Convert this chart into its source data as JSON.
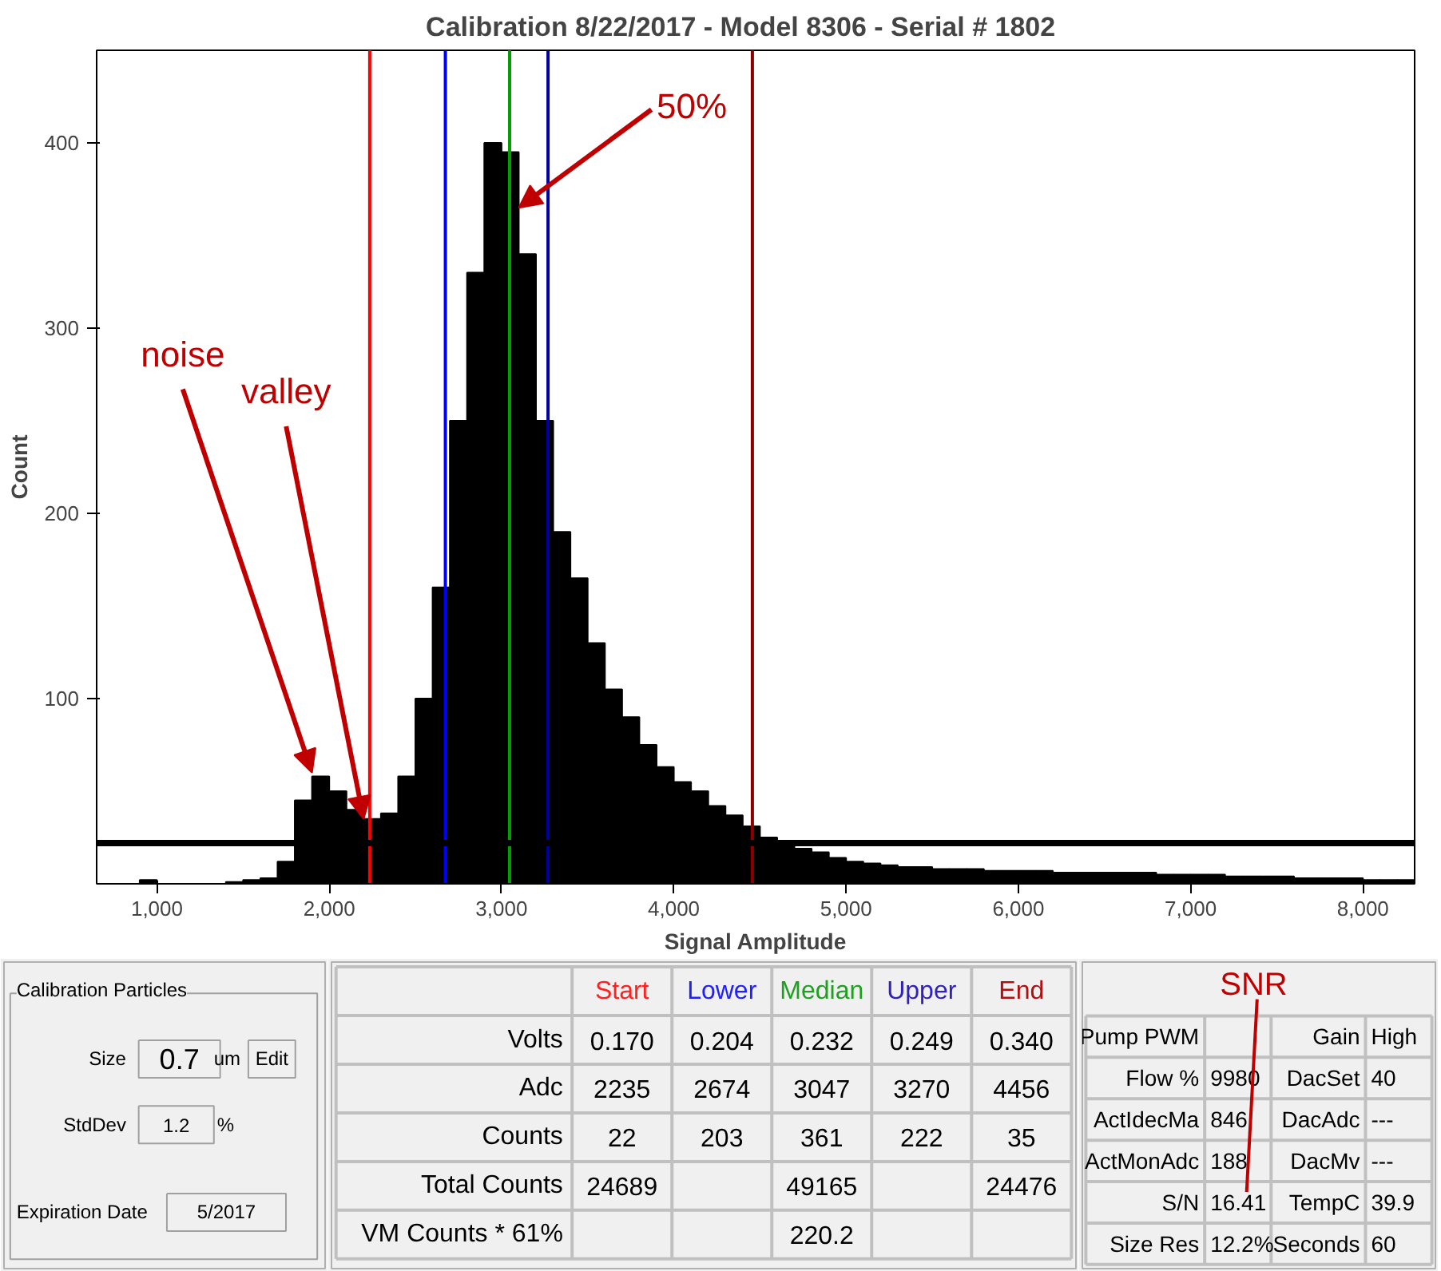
{
  "chart_data": [
    {
      "type": "histogram",
      "title": "Calibration 8/22/2017  -  Model 8306  -  Serial # 1802",
      "xlabel": "Signal Amplitude",
      "ylabel": "Count",
      "color": "#000000",
      "bins": [
        700,
        800,
        900,
        1000,
        1100,
        1200,
        1300,
        1400,
        1500,
        1600,
        1700,
        1800,
        1900,
        2000,
        2100,
        2200,
        2300,
        2400,
        2500,
        2600,
        2700,
        2800,
        2900,
        3000,
        3100,
        3200,
        3300,
        3400,
        3500,
        3600,
        3700,
        3800,
        3900,
        4000,
        4100,
        4200,
        4300,
        4400,
        4500,
        4600,
        4700,
        4800,
        4900,
        5000,
        5100,
        5200,
        5300,
        5400,
        5500,
        5600,
        5700,
        5800,
        5900,
        6000,
        6100,
        6200,
        6300,
        6400,
        6500,
        6600,
        6700,
        6800,
        6900,
        7000,
        7100,
        7200,
        7300,
        7400,
        7500,
        7600,
        7700,
        7800,
        7900,
        8000,
        8100,
        8200,
        8300
      ],
      "values": [
        0,
        0,
        2,
        0,
        0,
        0,
        0,
        1,
        2,
        3,
        12,
        45,
        58,
        50,
        40,
        35,
        38,
        58,
        100,
        160,
        250,
        330,
        400,
        395,
        340,
        250,
        190,
        165,
        130,
        105,
        90,
        75,
        63,
        55,
        50,
        42,
        37,
        31,
        25,
        22,
        19,
        17,
        14,
        12,
        11,
        10,
        9,
        9,
        8,
        8,
        8,
        7,
        7,
        7,
        7,
        6,
        6,
        6,
        6,
        6,
        6,
        5,
        5,
        5,
        5,
        4,
        4,
        4,
        4,
        3,
        3,
        3,
        3,
        2,
        2,
        2
      ],
      "xlim": [
        650,
        8300
      ],
      "ylim": [
        0,
        450
      ],
      "xticks": [
        {
          "value": 1000,
          "label": "1,000"
        },
        {
          "value": 2000,
          "label": "2,000"
        },
        {
          "value": 3000,
          "label": "3,000"
        },
        {
          "value": 4000,
          "label": "4,000"
        },
        {
          "value": 5000,
          "label": "5,000"
        },
        {
          "value": 6000,
          "label": "6,000"
        },
        {
          "value": 7000,
          "label": "7,000"
        },
        {
          "value": 8000,
          "label": "8,000"
        }
      ],
      "yticks": [
        100,
        200,
        300,
        400
      ],
      "ref_lines": [
        {
          "axis": "x",
          "value": 2235,
          "color": "#ff0000"
        },
        {
          "axis": "x",
          "value": 2674,
          "color": "#0000ff"
        },
        {
          "axis": "x",
          "value": 3047,
          "color": "#00a000"
        },
        {
          "axis": "x",
          "value": 3270,
          "color": "#0000a0"
        },
        {
          "axis": "x",
          "value": 4456,
          "color": "#8b0000"
        },
        {
          "axis": "y",
          "value": 22,
          "color": "#000000"
        }
      ],
      "annotations": [
        {
          "text": "noise",
          "x": 1900,
          "y": 60
        },
        {
          "text": "valley",
          "x": 2200,
          "y": 35
        },
        {
          "text": "50%",
          "x": 3100,
          "y": 365
        }
      ],
      "grid": false
    },
    {
      "type": "other",
      "title": "Calibration Particles",
      "annotations": [
        "Size",
        "0.7",
        "um",
        "Edit",
        "StdDev",
        "1.2",
        "%",
        "Expiration Date",
        "5/2017"
      ]
    },
    {
      "type": "other",
      "categories": [
        "Start",
        "Lower",
        "Median",
        "Upper",
        "End"
      ],
      "y_categories": [
        "Volts",
        "Adc",
        "Counts",
        "Total Counts",
        "VM Counts * 61%"
      ],
      "cell_labels": [
        [
          "0.170",
          "0.204",
          "0.232",
          "0.249",
          "0.340"
        ],
        [
          "2235",
          "2674",
          "3047",
          "3270",
          "4456"
        ],
        [
          "22",
          "203",
          "361",
          "222",
          "35"
        ],
        [
          "24689",
          null,
          "49165",
          null,
          "24476"
        ],
        [
          null,
          null,
          "220.2",
          null,
          null
        ]
      ]
    },
    {
      "type": "other",
      "annotations": [
        "SNR"
      ],
      "y_categories": [
        "Pump PWM",
        "Flow %",
        "ActIdecMa",
        "ActMonAdc",
        "S/N",
        "Size Res"
      ],
      "y2_categories": [
        "Gain",
        "DacSet",
        "DacAdc",
        "DacMv",
        "TempC",
        "Seconds"
      ],
      "cell_labels": [
        [
          null,
          "High"
        ],
        [
          "9980",
          "40"
        ],
        [
          "846",
          "---"
        ],
        [
          "188",
          "---"
        ],
        [
          "16.41",
          "39.9"
        ],
        [
          "12.2%",
          "60"
        ]
      ]
    }
  ]
}
